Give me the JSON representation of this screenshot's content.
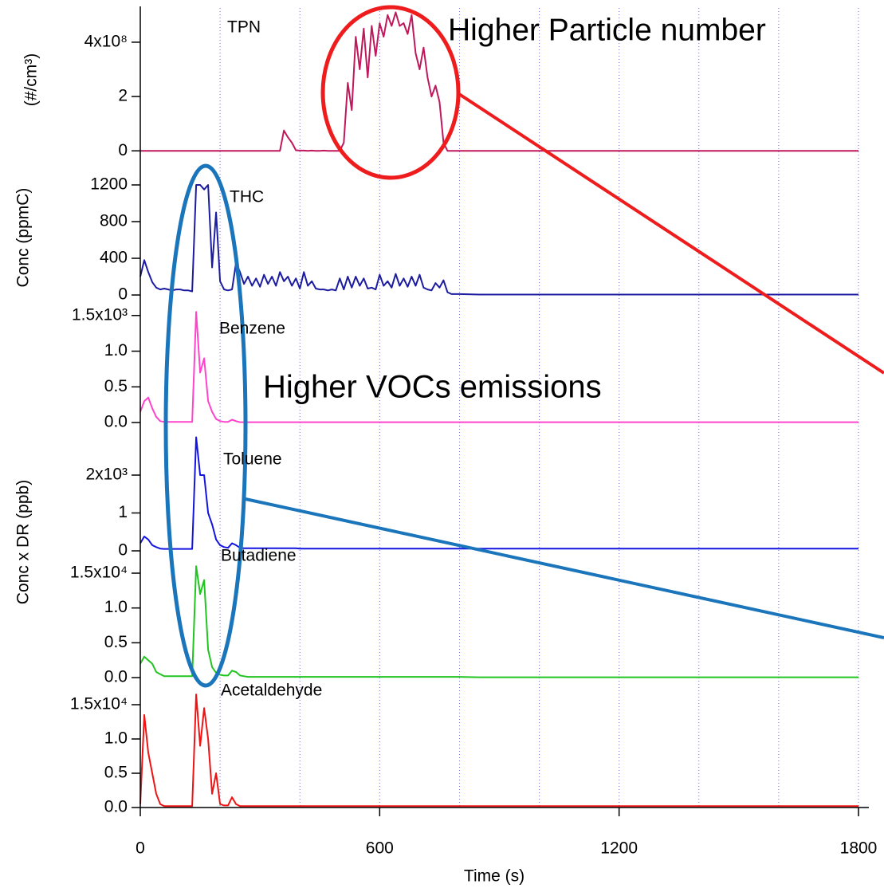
{
  "chart_data": {
    "type": "line",
    "x": [
      0,
      10,
      20,
      30,
      40,
      50,
      60,
      70,
      80,
      90,
      100,
      110,
      120,
      130,
      140,
      150,
      160,
      170,
      180,
      190,
      200,
      210,
      220,
      230,
      240,
      250,
      260,
      270,
      280,
      290,
      300,
      310,
      320,
      330,
      340,
      350,
      360,
      370,
      380,
      390,
      400,
      410,
      420,
      430,
      440,
      450,
      460,
      470,
      480,
      490,
      500,
      510,
      520,
      530,
      540,
      550,
      560,
      570,
      580,
      590,
      600,
      610,
      620,
      630,
      640,
      650,
      660,
      670,
      680,
      690,
      700,
      710,
      720,
      730,
      740,
      750,
      760,
      770,
      780,
      790,
      800,
      850,
      900,
      950,
      1000,
      1050,
      1100,
      1150,
      1200,
      1250,
      1300,
      1350,
      1400,
      1450,
      1500,
      1550,
      1600,
      1650,
      1700,
      1750,
      1800
    ],
    "xlim": [
      0,
      1800
    ],
    "xticks": [
      0,
      600,
      1200,
      1800
    ],
    "xgrid": [
      200,
      400,
      600,
      800,
      1000,
      1200,
      1400,
      1600,
      1800
    ],
    "x_label": "Time (s)",
    "y_labels": [
      "(#/cm³)",
      "Conc (ppmC)",
      "Conc x DR (ppb)"
    ],
    "annotations": [
      "Higher Particle number",
      "Higher VOCs emissions"
    ],
    "series": [
      {
        "name": "TPN",
        "color": "#c0185c",
        "ylim": [
          -17000000,
          526000000
        ],
        "yticks": [
          0,
          {
            "value": 200000000,
            "label": "2"
          },
          {
            "value": 400000000,
            "label": "4x10⁸"
          }
        ],
        "values": [
          0,
          0,
          0,
          0,
          0,
          0,
          0,
          0,
          0,
          0,
          0,
          0,
          0,
          0,
          0,
          0,
          0,
          0,
          0,
          0,
          0,
          0,
          0,
          0,
          0,
          0,
          0,
          0,
          0,
          0,
          0,
          0,
          0,
          0,
          0,
          0,
          75000000.0,
          50000000.0,
          30000000.0,
          2000000.0,
          1000000.0,
          1000000.0,
          0,
          1000000.0,
          0,
          0,
          1000000.0,
          0,
          0,
          0,
          0,
          30000000.0,
          250000000.0,
          150000000.0,
          420000000.0,
          300000000.0,
          450000000.0,
          270000000.0,
          460000000.0,
          350000000.0,
          470000000.0,
          420000000.0,
          500000000.0,
          460000000.0,
          510000000.0,
          460000000.0,
          470000000.0,
          430000000.0,
          500000000.0,
          360000000.0,
          300000000.0,
          380000000.0,
          270000000.0,
          200000000.0,
          240000000.0,
          180000000.0,
          30000000.0,
          0,
          0,
          0,
          0,
          0,
          0,
          0,
          0,
          0,
          0,
          0,
          0,
          0,
          0,
          0,
          0,
          0,
          0,
          0,
          0,
          0,
          0,
          0,
          0
        ]
      },
      {
        "name": "THC",
        "color": "#1c1ca0",
        "ylim": [
          -43,
          1478
        ],
        "yticks": [
          0,
          400,
          800,
          1200
        ],
        "values": [
          200,
          380,
          250,
          140,
          80,
          60,
          70,
          60,
          50,
          60,
          60,
          50,
          50,
          40,
          1200,
          1200,
          1150,
          1200,
          300,
          900,
          150,
          60,
          50,
          60,
          350,
          250,
          120,
          200,
          100,
          180,
          90,
          220,
          120,
          200,
          100,
          250,
          150,
          200,
          100,
          180,
          70,
          250,
          100,
          150,
          70,
          60,
          60,
          50,
          60,
          50,
          180,
          60,
          200,
          80,
          200,
          100,
          180,
          70,
          80,
          60,
          220,
          100,
          150,
          80,
          230,
          100,
          180,
          90,
          200,
          100,
          220,
          80,
          60,
          50,
          130,
          80,
          160,
          30,
          10,
          10,
          10,
          5,
          5,
          5,
          5,
          5,
          5,
          5,
          5,
          5,
          5,
          5,
          5,
          5,
          5,
          5,
          5,
          5,
          5,
          5,
          5
        ]
      },
      {
        "name": "Benzene",
        "color": "#ff44cc",
        "ylim": [
          -55,
          1620
        ],
        "yticks": [
          {
            "value": 0,
            "label": "0.0"
          },
          {
            "value": 500,
            "label": "0.5"
          },
          {
            "value": 1000,
            "label": "1.0"
          },
          {
            "value": 1500,
            "label": "1.5x10³"
          }
        ],
        "values": [
          150,
          300,
          350,
          200,
          80,
          20,
          10,
          10,
          10,
          10,
          10,
          10,
          10,
          10,
          1550,
          700,
          900,
          300,
          150,
          50,
          20,
          10,
          10,
          40,
          20,
          5,
          5,
          5,
          5,
          5,
          5,
          5,
          5,
          5,
          5,
          5,
          5,
          5,
          5,
          5,
          5,
          5,
          5,
          5,
          5,
          5,
          5,
          5,
          5,
          5,
          5,
          5,
          5,
          5,
          5,
          5,
          5,
          5,
          5,
          5,
          5,
          5,
          5,
          5,
          5,
          5,
          5,
          5,
          5,
          5,
          5,
          5,
          5,
          5,
          5,
          5,
          5,
          5,
          5,
          5,
          5,
          5,
          5,
          5,
          5,
          5,
          5,
          5,
          5,
          5,
          5,
          5,
          5,
          5,
          5,
          5,
          5,
          5,
          5,
          5,
          5
        ]
      },
      {
        "name": "Toluene",
        "color": "#1414e0",
        "ylim": [
          -105,
          3010
        ],
        "yticks": [
          0,
          {
            "value": 1000,
            "label": "1"
          },
          {
            "value": 2000,
            "label": "2x10³"
          }
        ],
        "values": [
          200,
          380,
          300,
          150,
          100,
          60,
          50,
          50,
          50,
          50,
          50,
          50,
          50,
          50,
          3000,
          2000,
          2000,
          1000,
          700,
          300,
          150,
          100,
          80,
          200,
          150,
          80,
          70,
          70,
          70,
          70,
          70,
          70,
          70,
          70,
          70,
          70,
          70,
          70,
          70,
          70,
          60,
          60,
          60,
          60,
          60,
          60,
          60,
          60,
          60,
          60,
          60,
          60,
          60,
          60,
          60,
          60,
          60,
          60,
          60,
          60,
          60,
          60,
          60,
          60,
          60,
          60,
          60,
          60,
          60,
          60,
          60,
          60,
          60,
          60,
          60,
          60,
          60,
          60,
          60,
          60,
          60,
          60,
          60,
          60,
          60,
          60,
          60,
          60,
          60,
          60,
          60,
          60,
          60,
          60,
          60,
          60,
          60,
          60,
          60,
          60,
          60
        ]
      },
      {
        "name": "Butadiene",
        "color": "#22c422",
        "ylim": [
          -570,
          16490
        ],
        "yticks": [
          {
            "value": 0,
            "label": "0.0"
          },
          {
            "value": 5000,
            "label": "0.5"
          },
          {
            "value": 10000,
            "label": "1.0"
          },
          {
            "value": 15000,
            "label": "1.5x10⁴"
          }
        ],
        "values": [
          2000,
          3000,
          2500,
          2000,
          800,
          500,
          200,
          200,
          200,
          200,
          200,
          200,
          200,
          200,
          16000,
          12000,
          14000,
          4000,
          1500,
          700,
          400,
          300,
          300,
          1000,
          800,
          300,
          200,
          100,
          100,
          100,
          100,
          100,
          100,
          100,
          100,
          100,
          100,
          100,
          100,
          100,
          100,
          100,
          100,
          100,
          100,
          100,
          100,
          100,
          100,
          100,
          100,
          100,
          100,
          100,
          100,
          100,
          100,
          100,
          100,
          100,
          100,
          100,
          100,
          100,
          100,
          100,
          100,
          100,
          100,
          100,
          100,
          100,
          100,
          100,
          100,
          100,
          100,
          100,
          100,
          100,
          100,
          50,
          50,
          50,
          50,
          50,
          50,
          50,
          50,
          50,
          50,
          50,
          50,
          50,
          50,
          50,
          50,
          50,
          50,
          50,
          50
        ]
      },
      {
        "name": "Acetaldehyde",
        "color": "#ee1414",
        "ylim": [
          -580,
          16630
        ],
        "yticks": [
          {
            "value": 0,
            "label": "0.0"
          },
          {
            "value": 5000,
            "label": "0.5"
          },
          {
            "value": 10000,
            "label": "1.0"
          },
          {
            "value": 15000,
            "label": "1.5x10⁴"
          }
        ],
        "values": [
          500,
          13500,
          8000,
          5000,
          2000,
          500,
          200,
          200,
          200,
          200,
          200,
          200,
          200,
          200,
          16500,
          9000,
          14500,
          10000,
          2000,
          5000,
          500,
          300,
          300,
          1500,
          500,
          200,
          200,
          200,
          200,
          200,
          200,
          200,
          200,
          200,
          200,
          200,
          200,
          200,
          200,
          200,
          200,
          200,
          200,
          200,
          200,
          200,
          200,
          200,
          200,
          200,
          200,
          200,
          200,
          200,
          200,
          200,
          200,
          200,
          200,
          200,
          200,
          200,
          200,
          200,
          200,
          200,
          200,
          200,
          200,
          200,
          200,
          200,
          200,
          200,
          200,
          200,
          200,
          200,
          200,
          200,
          200,
          200,
          200,
          200,
          200,
          200,
          200,
          200,
          200,
          200,
          200,
          200,
          200,
          200,
          200,
          200,
          200,
          200,
          200,
          200,
          200
        ]
      }
    ]
  }
}
